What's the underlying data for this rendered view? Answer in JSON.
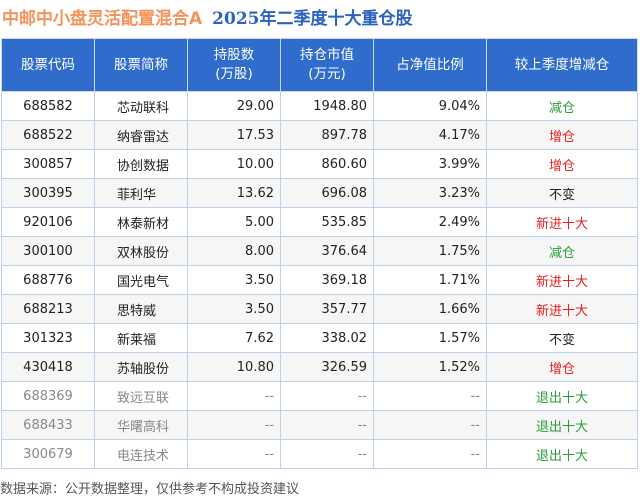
{
  "title": {
    "fund": "中邮中小盘灵活配置混合A",
    "subtitle": "2025年二季度十大重仓股"
  },
  "headers": [
    "股票代码",
    "股票简称",
    "持股数\n(万股)",
    "持仓市值\n(万元)",
    "占净值比例",
    "较上季度增减仓"
  ],
  "rows": [
    {
      "code": "688582",
      "name": "芯动联科",
      "shares": "29.00",
      "value": "1948.80",
      "ratio": "9.04%",
      "change": "减仓",
      "type": "down"
    },
    {
      "code": "688522",
      "name": "纳睿雷达",
      "shares": "17.53",
      "value": "897.78",
      "ratio": "4.17%",
      "change": "增仓",
      "type": "up"
    },
    {
      "code": "300857",
      "name": "协创数据",
      "shares": "10.00",
      "value": "860.60",
      "ratio": "3.99%",
      "change": "增仓",
      "type": "up"
    },
    {
      "code": "300395",
      "name": "菲利华",
      "shares": "13.62",
      "value": "696.08",
      "ratio": "3.23%",
      "change": "不变",
      "type": "same"
    },
    {
      "code": "920106",
      "name": "林泰新材",
      "shares": "5.00",
      "value": "535.85",
      "ratio": "2.49%",
      "change": "新进十大",
      "type": "up"
    },
    {
      "code": "300100",
      "name": "双林股份",
      "shares": "8.00",
      "value": "376.64",
      "ratio": "1.75%",
      "change": "减仓",
      "type": "down"
    },
    {
      "code": "688776",
      "name": "国光电气",
      "shares": "3.50",
      "value": "369.18",
      "ratio": "1.71%",
      "change": "新进十大",
      "type": "up"
    },
    {
      "code": "688213",
      "name": "思特威",
      "shares": "3.50",
      "value": "357.77",
      "ratio": "1.66%",
      "change": "新进十大",
      "type": "up"
    },
    {
      "code": "301323",
      "name": "新莱福",
      "shares": "7.62",
      "value": "338.02",
      "ratio": "1.57%",
      "change": "不变",
      "type": "same"
    },
    {
      "code": "430418",
      "name": "苏轴股份",
      "shares": "10.80",
      "value": "326.59",
      "ratio": "1.52%",
      "change": "增仓",
      "type": "up"
    },
    {
      "code": "688369",
      "name": "致远互联",
      "shares": "--",
      "value": "--",
      "ratio": "--",
      "change": "退出十大",
      "type": "down",
      "exit": true
    },
    {
      "code": "688433",
      "name": "华曙高科",
      "shares": "--",
      "value": "--",
      "ratio": "--",
      "change": "退出十大",
      "type": "down",
      "exit": true
    },
    {
      "code": "300679",
      "name": "电连技术",
      "shares": "--",
      "value": "--",
      "ratio": "--",
      "change": "退出十大",
      "type": "down",
      "exit": true
    }
  ],
  "footer": "数据来源：公开数据整理，仅供参考不构成投资建议",
  "colors": {
    "header_bg": "#2f6ccb",
    "increase": "#e52222",
    "decrease": "#2a9d3a",
    "title_fund": "#f4935a",
    "title_sub": "#2b62c0"
  }
}
